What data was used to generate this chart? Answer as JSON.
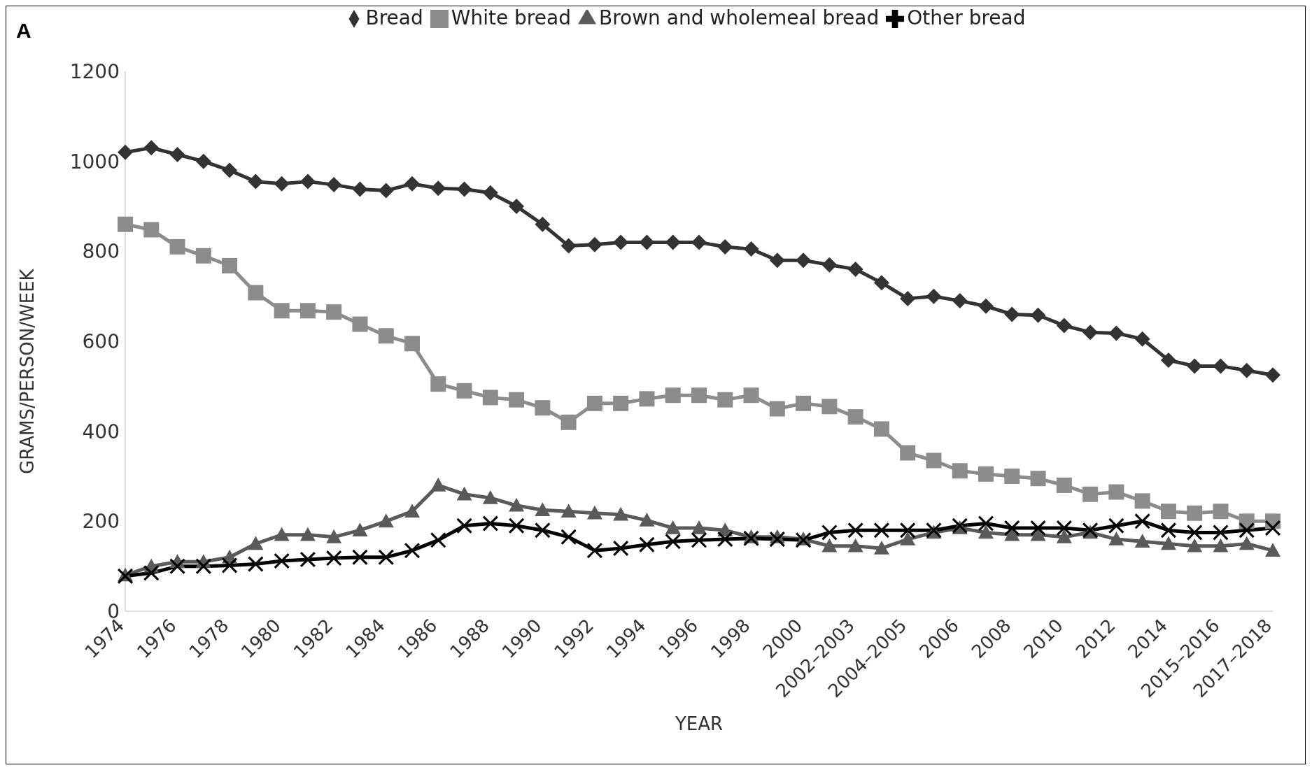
{
  "chart_data": {
    "type": "line",
    "title": "A",
    "xlabel": "YEAR",
    "ylabel": "GRAMS/PERSON/WEEK",
    "categories": [
      "1974",
      null,
      "1976",
      null,
      "1978",
      null,
      "1980",
      null,
      "1982",
      null,
      "1984",
      null,
      "1986",
      null,
      "1988",
      null,
      "1990",
      null,
      "1992",
      null,
      "1994",
      null,
      "1996",
      null,
      "1998",
      null,
      "2000",
      null,
      "2002–2003",
      null,
      "2004–2005",
      null,
      "2006",
      null,
      "2008",
      null,
      "2010",
      null,
      "2012",
      null,
      "2014",
      null,
      "2015–2016",
      null,
      "2017–2018"
    ],
    "series": [
      {
        "name": "Bread",
        "color": "#333333",
        "marker": "diamond",
        "values": [
          1020,
          1030,
          1015,
          1000,
          980,
          955,
          950,
          955,
          948,
          938,
          935,
          950,
          940,
          938,
          930,
          900,
          860,
          812,
          815,
          820,
          820,
          820,
          820,
          810,
          805,
          780,
          780,
          770,
          760,
          730,
          695,
          700,
          690,
          678,
          660,
          658,
          635,
          620,
          618,
          605,
          558,
          545,
          545,
          535,
          525
        ]
      },
      {
        "name": "White bread",
        "color": "#8c8c8c",
        "marker": "square",
        "values": [
          860,
          848,
          810,
          790,
          768,
          708,
          668,
          668,
          665,
          638,
          612,
          595,
          505,
          490,
          475,
          470,
          452,
          420,
          462,
          462,
          472,
          480,
          480,
          470,
          480,
          450,
          462,
          455,
          432,
          405,
          352,
          335,
          312,
          305,
          300,
          295,
          280,
          260,
          265,
          245,
          222,
          218,
          222,
          200,
          200
        ]
      },
      {
        "name": "Brown and wholemeal bread",
        "color": "#5a5a5a",
        "marker": "triangle",
        "values": [
          80,
          100,
          110,
          110,
          120,
          150,
          170,
          170,
          165,
          180,
          200,
          222,
          280,
          260,
          252,
          235,
          225,
          222,
          218,
          215,
          202,
          185,
          185,
          180,
          165,
          165,
          160,
          145,
          145,
          140,
          160,
          175,
          185,
          175,
          170,
          170,
          165,
          175,
          160,
          155,
          150,
          145,
          145,
          150,
          135
        ]
      },
      {
        "name": "Other bread",
        "color": "#000000",
        "marker": "cross",
        "values": [
          78,
          85,
          100,
          100,
          102,
          105,
          112,
          115,
          118,
          120,
          120,
          135,
          158,
          190,
          195,
          190,
          180,
          165,
          135,
          140,
          148,
          155,
          158,
          160,
          162,
          160,
          158,
          175,
          180,
          180,
          180,
          180,
          190,
          195,
          185,
          185,
          185,
          180,
          190,
          200,
          180,
          175,
          175,
          180,
          185
        ]
      }
    ],
    "ylim": [
      0,
      1200
    ],
    "yticks": [
      0,
      200,
      400,
      600,
      800,
      1000,
      1200
    ],
    "grid": false,
    "legend": "top",
    "line_style": "solid"
  }
}
